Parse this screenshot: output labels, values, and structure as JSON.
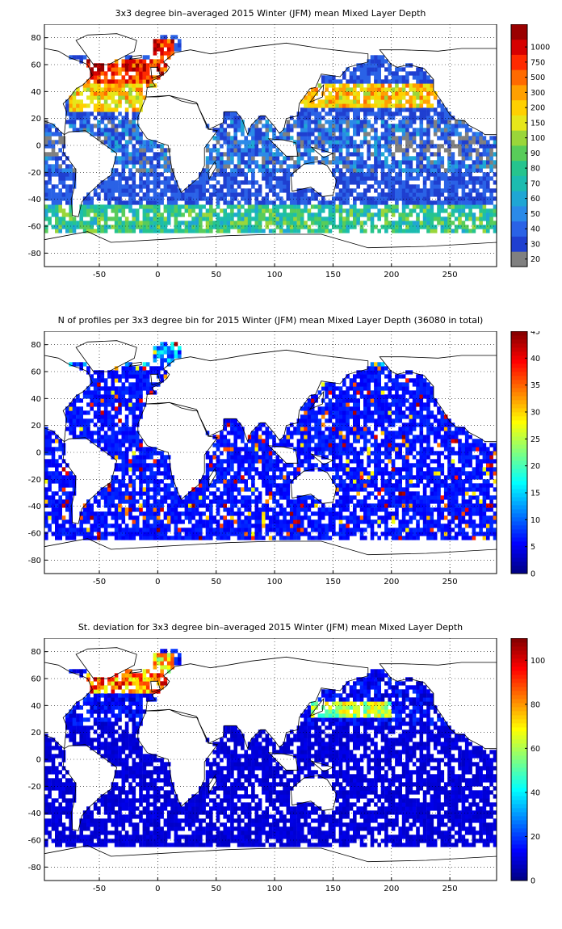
{
  "panels": [
    {
      "title": "3x3 degree bin–averaged 2015 Winter (JFM) mean Mixed Layer Depth",
      "chart_data": {
        "type": "heatmap",
        "title": "3x3 degree bin–averaged 2015 Winter (JFM) mean Mixed Layer Depth",
        "xlabel": "",
        "ylabel": "",
        "xlim": [
          -97,
          290
        ],
        "ylim": [
          -90,
          90
        ],
        "x_ticks": [
          -50,
          0,
          50,
          100,
          150,
          200,
          250
        ],
        "y_ticks": [
          -80,
          -60,
          -40,
          -20,
          0,
          20,
          40,
          60,
          80
        ],
        "grid": true,
        "bin_size_deg": 3,
        "colorbar": {
          "scale": "discrete",
          "tick_labels": [
            "20",
            "30",
            "40",
            "50",
            "60",
            "70",
            "80",
            "90",
            "100",
            "150",
            "200",
            "300",
            "500",
            "750",
            "1000"
          ],
          "colors": [
            "#808080",
            "#1f3fd0",
            "#2a62e6",
            "#2b8ae8",
            "#1fa6d4",
            "#1cbcb0",
            "#26c48e",
            "#58cc5a",
            "#9ad63a",
            "#e6e61a",
            "#ffd000",
            "#ffa000",
            "#ff6a00",
            "#ff2a00",
            "#d60000",
            "#9a0000"
          ]
        },
        "regions": [
          {
            "name": "North Atlantic subpolar",
            "lon": [
              -60,
              10
            ],
            "lat": [
              45,
              65
            ],
            "level": 13
          },
          {
            "name": "Nordic Seas",
            "lon": [
              -5,
              15
            ],
            "lat": [
              65,
              80
            ],
            "level": 13
          },
          {
            "name": "Labrador Sea",
            "lon": [
              -60,
              -45
            ],
            "lat": [
              55,
              65
            ],
            "level": 15
          },
          {
            "name": "North Atlantic subtropical",
            "lon": [
              -75,
              0
            ],
            "lat": [
              25,
              45
            ],
            "level": 10
          },
          {
            "name": "North Pacific mid-latitudes",
            "lon": [
              120,
              240
            ],
            "lat": [
              28,
              45
            ],
            "level": 10
          },
          {
            "name": "Southern Ocean front",
            "lon": [
              -97,
              290
            ],
            "lat": [
              -65,
              -45
            ],
            "level": 6
          },
          {
            "name": "Tropics",
            "lon": [
              -97,
              290
            ],
            "lat": [
              -20,
              20
            ],
            "level": 2
          }
        ]
      }
    },
    {
      "title": "N of profiles per 3x3 degree bin for 2015 Winter (JFM) mean Mixed Layer Depth  (36080 in total)",
      "chart_data": {
        "type": "heatmap",
        "title": "N of profiles per 3x3 degree bin for 2015 Winter (JFM) mean Mixed Layer Depth  (36080 in total)",
        "xlabel": "",
        "ylabel": "",
        "xlim": [
          -97,
          290
        ],
        "ylim": [
          -90,
          90
        ],
        "x_ticks": [
          -50,
          0,
          50,
          100,
          150,
          200,
          250
        ],
        "y_ticks": [
          -80,
          -60,
          -40,
          -20,
          0,
          20,
          40,
          60,
          80
        ],
        "grid": true,
        "bin_size_deg": 3,
        "total_profiles": 36080,
        "colorbar": {
          "scale": "continuous",
          "range": [
            0,
            45
          ],
          "tick_labels": [
            "0",
            "5",
            "10",
            "15",
            "20",
            "25",
            "30",
            "35",
            "40",
            "45"
          ],
          "colormap": "jet"
        },
        "regions": [
          {
            "name": "Mediterranean",
            "lon": [
              0,
              35
            ],
            "lat": [
              32,
              45
            ],
            "value": 45
          },
          {
            "name": "Kuroshio / Japan",
            "lon": [
              125,
              150
            ],
            "lat": [
              25,
              42
            ],
            "value": 45
          },
          {
            "name": "Arabian Sea",
            "lon": [
              55,
              70
            ],
            "lat": [
              15,
              25
            ],
            "value": 42
          },
          {
            "name": "Open ocean typical",
            "lon": [
              -97,
              290
            ],
            "lat": [
              -65,
              65
            ],
            "value": 8
          }
        ]
      }
    },
    {
      "title": "St. deviation for 3x3 degree bin–averaged 2015 Winter (JFM) mean Mixed Layer Depth",
      "chart_data": {
        "type": "heatmap",
        "title": "St. deviation for 3x3 degree bin–averaged 2015 Winter (JFM) mean Mixed Layer Depth",
        "xlabel": "",
        "ylabel": "",
        "xlim": [
          -97,
          290
        ],
        "ylim": [
          -90,
          90
        ],
        "x_ticks": [
          -50,
          0,
          50,
          100,
          150,
          200,
          250
        ],
        "y_ticks": [
          -80,
          -60,
          -40,
          -20,
          0,
          20,
          40,
          60,
          80
        ],
        "grid": true,
        "bin_size_deg": 3,
        "colorbar": {
          "scale": "continuous",
          "range": [
            0,
            110
          ],
          "tick_labels": [
            "0",
            "20",
            "40",
            "60",
            "80",
            "100"
          ],
          "colormap": "jet"
        },
        "regions": [
          {
            "name": "North Atlantic subpolar",
            "lon": [
              -60,
              10
            ],
            "lat": [
              48,
              70
            ],
            "value": 105
          },
          {
            "name": "Nordic Seas",
            "lon": [
              -5,
              15
            ],
            "lat": [
              65,
              80
            ],
            "value": 90
          },
          {
            "name": "North Pacific mid-latitudes",
            "lon": [
              130,
              200
            ],
            "lat": [
              30,
              42
            ],
            "value": 75
          },
          {
            "name": "Tropics and Southern Ocean",
            "lon": [
              -97,
              290
            ],
            "lat": [
              -65,
              25
            ],
            "value": 12
          }
        ]
      }
    }
  ]
}
